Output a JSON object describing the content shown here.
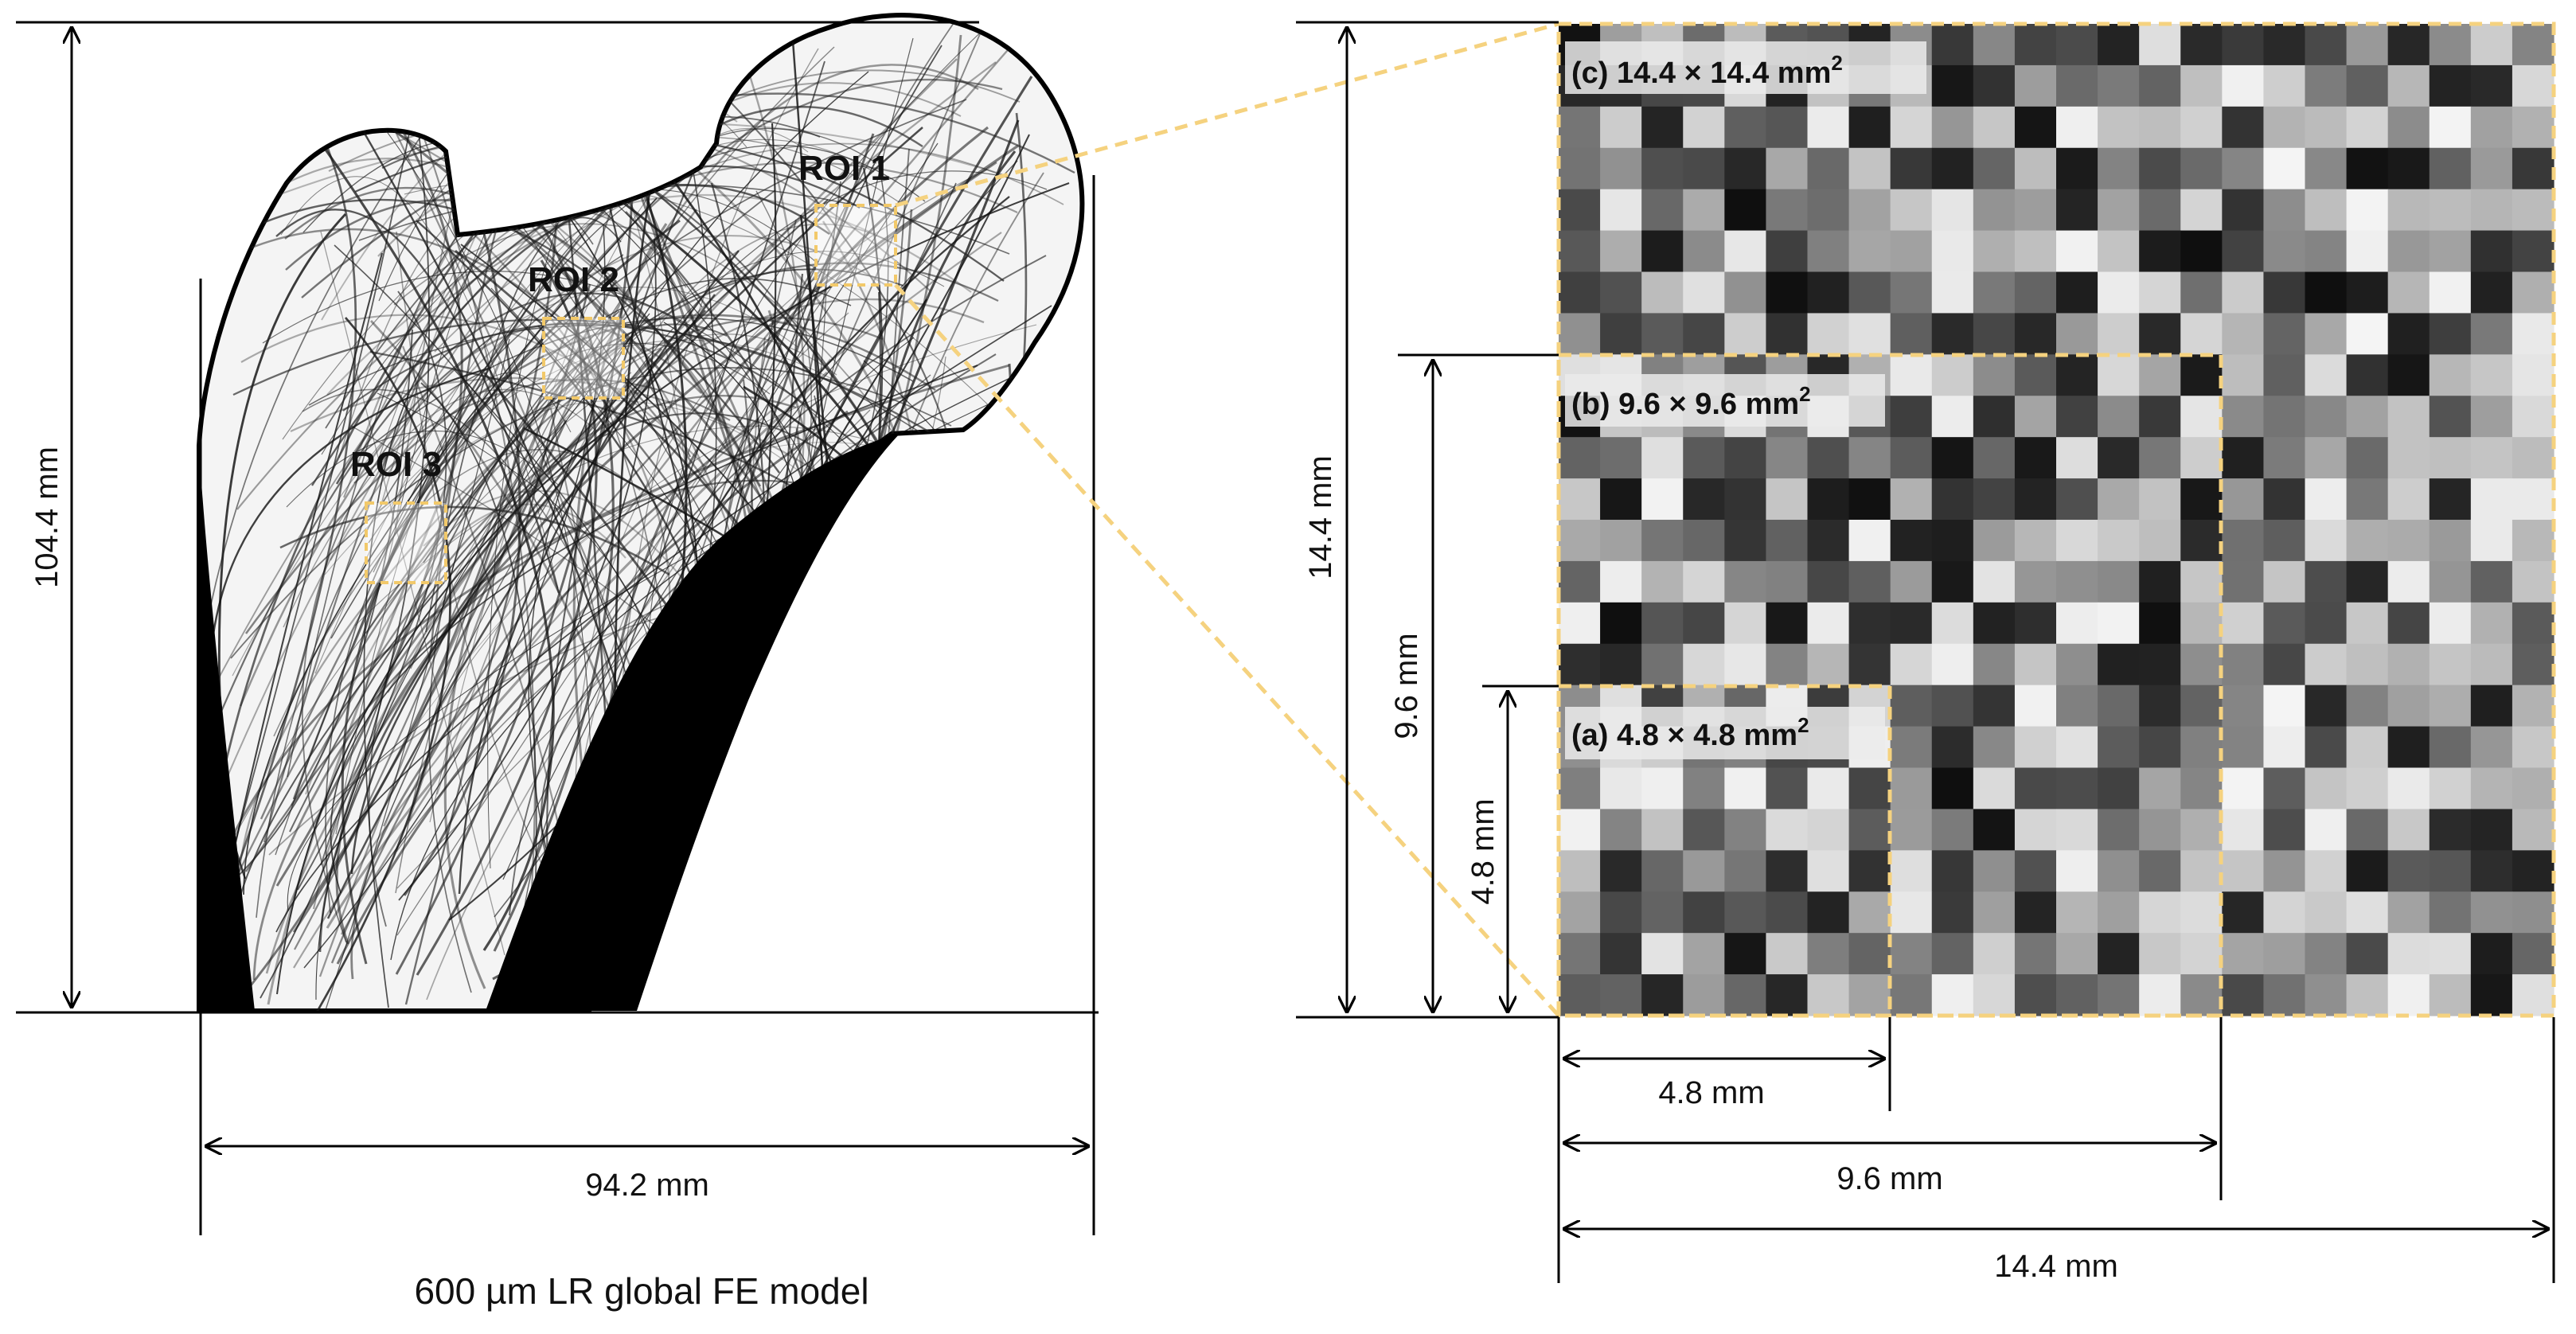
{
  "left_panel": {
    "height_label": "104.4 mm",
    "width_label": "94.2 mm",
    "caption": "600 µm LR global FE model",
    "rois": [
      {
        "label": "ROI 1"
      },
      {
        "label": "ROI 2"
      },
      {
        "label": "ROI 3"
      }
    ]
  },
  "right_panel": {
    "regions": [
      {
        "tag": "(c) 14.4 × 14.4 mm",
        "superscript": "2"
      },
      {
        "tag": "(b) 9.6 × 9.6 mm",
        "superscript": "2"
      },
      {
        "tag": "(a) 4.8 × 4.8 mm",
        "superscript": "2"
      }
    ],
    "vertical_dims": [
      "14.4 mm",
      "9.6 mm",
      "4.8 mm"
    ],
    "horizontal_dims": [
      "4.8 mm",
      "9.6 mm",
      "14.4 mm"
    ]
  },
  "colors": {
    "roi_outline": "#f2c96a",
    "zoom_lines": "#f5d27f",
    "bone": "#000000"
  }
}
